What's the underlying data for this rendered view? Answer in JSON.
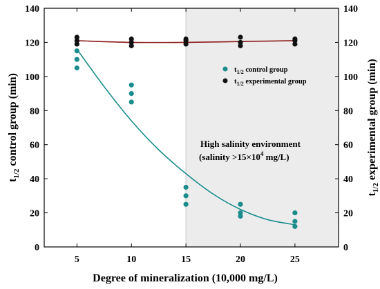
{
  "chart_data": {
    "type": "scatter",
    "xlabel": "Degree of mineralization (10,000 mg/L)",
    "ylabel_left": {
      "main": "t",
      "sub": "1/2",
      "rest": " control group (min)"
    },
    "ylabel_right": {
      "main": "t",
      "sub": "1/2",
      "rest": " experimental group (min)"
    },
    "xlim": [
      2,
      29
    ],
    "ylim": [
      0,
      140
    ],
    "x_ticks": [
      "5",
      "10",
      "15",
      "20",
      "25"
    ],
    "x_tick_values": [
      5,
      10,
      15,
      20,
      25
    ],
    "y_ticks": [
      "0",
      "20",
      "40",
      "60",
      "80",
      "100",
      "120",
      "140"
    ],
    "y_tick_values": [
      0,
      20,
      40,
      60,
      80,
      100,
      120,
      140
    ],
    "grid": false,
    "legend_position": "upper-right",
    "shaded_region": {
      "x_start": 15,
      "x_end": 29,
      "color": "#ececec"
    },
    "series": [
      {
        "name": {
          "main": "t",
          "sub": "1/2",
          "rest": " control group"
        },
        "color": "#1a8c8c",
        "points": [
          [
            5,
            115
          ],
          [
            5,
            110
          ],
          [
            5,
            105
          ],
          [
            10,
            95
          ],
          [
            10,
            90
          ],
          [
            10,
            85
          ],
          [
            15,
            35
          ],
          [
            15,
            30
          ],
          [
            15,
            25
          ],
          [
            20,
            25
          ],
          [
            20,
            20
          ],
          [
            20,
            18
          ],
          [
            25,
            20
          ],
          [
            25,
            15
          ],
          [
            25,
            12
          ]
        ],
        "fit_curve": [
          [
            5,
            116
          ],
          [
            7.5,
            94
          ],
          [
            10,
            74
          ],
          [
            12.5,
            57
          ],
          [
            15,
            43
          ],
          [
            17.5,
            31
          ],
          [
            20,
            22
          ],
          [
            22.5,
            16
          ],
          [
            25,
            13
          ]
        ]
      },
      {
        "name": {
          "main": "t",
          "sub": "1/2",
          "rest": " experimental group"
        },
        "color": "#111111",
        "fit_color": "#8b1a1a",
        "points": [
          [
            5,
            123
          ],
          [
            5,
            121
          ],
          [
            5,
            119
          ],
          [
            10,
            122
          ],
          [
            10,
            120
          ],
          [
            10,
            118
          ],
          [
            15,
            122
          ],
          [
            15,
            121
          ],
          [
            15,
            119
          ],
          [
            20,
            123
          ],
          [
            20,
            120
          ],
          [
            20,
            118
          ],
          [
            25,
            122
          ],
          [
            25,
            121
          ],
          [
            25,
            119
          ]
        ],
        "fit_curve": [
          [
            5,
            121
          ],
          [
            10,
            120
          ],
          [
            15,
            120
          ],
          [
            20,
            120.5
          ],
          [
            25,
            121
          ]
        ]
      }
    ],
    "annotation": {
      "line1": "High salinity environment",
      "line2_prefix": "(salinity >15×10",
      "line2_sup": "4",
      "line2_suffix": " mg/L)"
    }
  }
}
